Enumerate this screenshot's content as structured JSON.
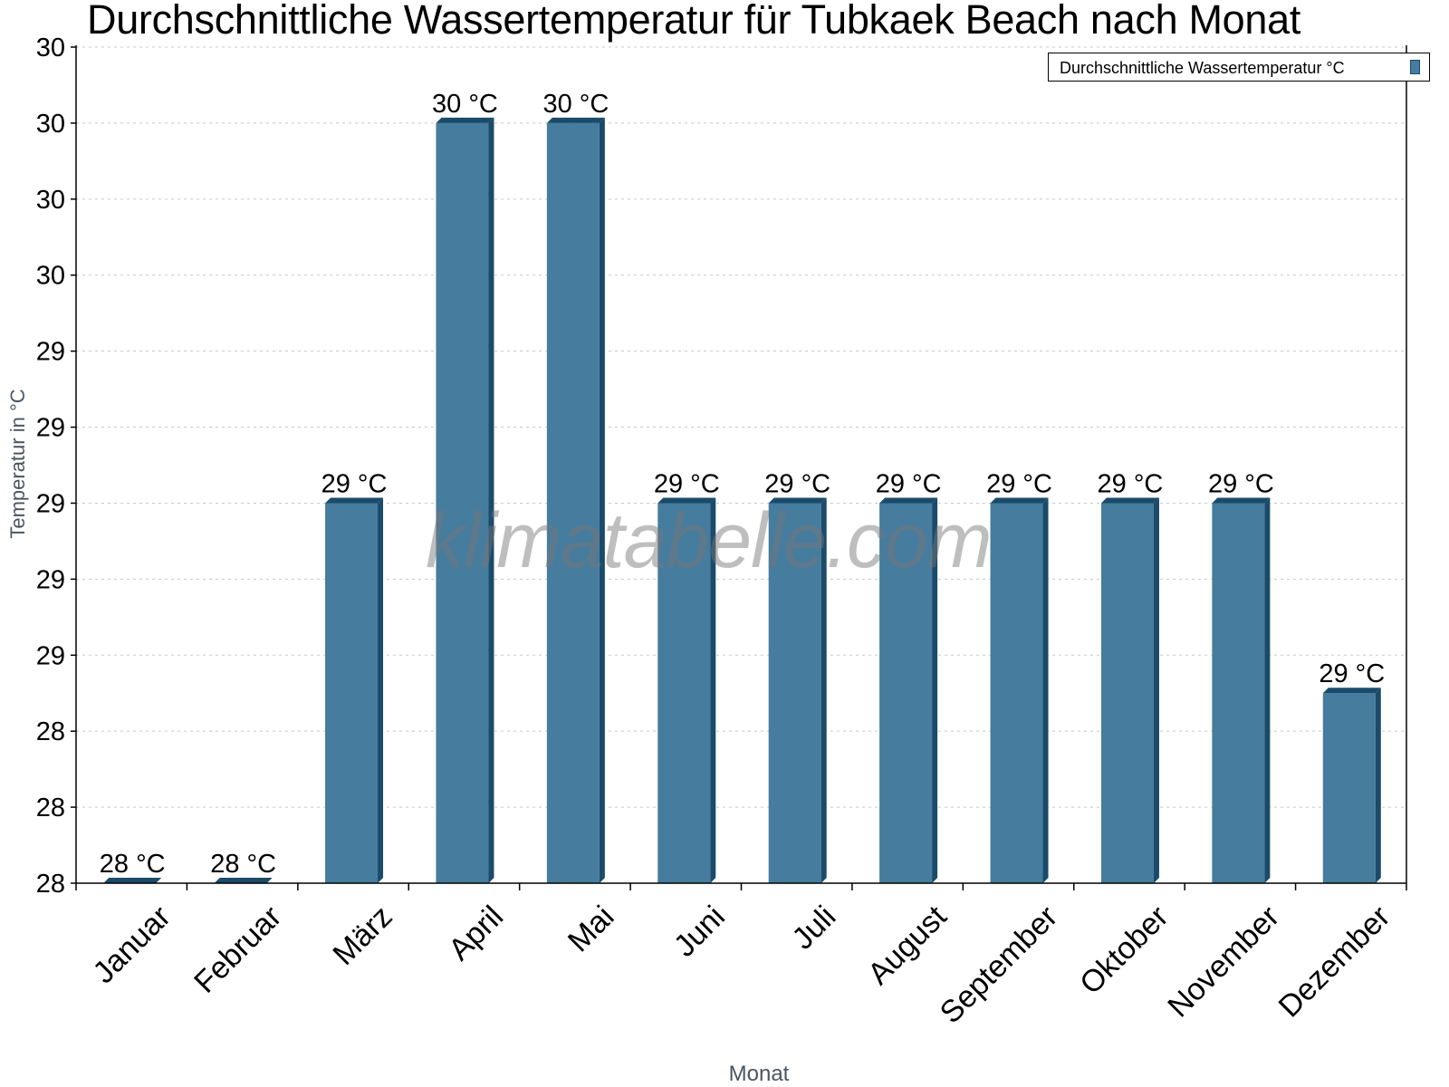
{
  "title": "Durchschnittliche Wassertemperatur für Tubkaek Beach nach Monat",
  "legend": {
    "label": "Durchschnittliche Wassertemperatur °C"
  },
  "watermark": "klimatabelle.com",
  "axes": {
    "ylabel": "Temperatur in °C",
    "xlabel": "Monat",
    "ytick_labels": [
      "28",
      "28",
      "28",
      "29",
      "29",
      "29",
      "29",
      "29",
      "30",
      "30",
      "30",
      "30"
    ]
  },
  "colors": {
    "bar_front": "#467c9e",
    "bar_side": "#1a4b6b",
    "grid": "#c8c8c8",
    "axis": "#000000"
  },
  "chart_data": {
    "type": "bar",
    "title": "Durchschnittliche Wassertemperatur für Tubkaek Beach nach Monat",
    "xlabel": "Monat",
    "ylabel": "Temperatur in °C",
    "categories": [
      "Januar",
      "Februar",
      "März",
      "April",
      "Mai",
      "Juni",
      "Juli",
      "August",
      "September",
      "Oktober",
      "November",
      "Dezember"
    ],
    "series": [
      {
        "name": "Durchschnittliche Wassertemperatur °C",
        "values": [
          28.0,
          28.0,
          29.0,
          30.0,
          30.0,
          29.0,
          29.0,
          29.0,
          29.0,
          29.0,
          29.0,
          28.5
        ],
        "data_labels": [
          "28 °C",
          "28 °C",
          "29 °C",
          "30 °C",
          "30 °C",
          "29 °C",
          "29 °C",
          "29 °C",
          "29 °C",
          "29 °C",
          "29 °C",
          "29 °C"
        ]
      }
    ],
    "ylim": [
      28.0,
      30.2
    ],
    "yticks": [
      28.0,
      28.2,
      28.4,
      28.6,
      28.8,
      29.0,
      29.2,
      29.4,
      29.6,
      29.8,
      30.0,
      30.2
    ],
    "ytick_labels": [
      "28",
      "28",
      "28",
      "29",
      "29",
      "29",
      "29",
      "29",
      "30",
      "30",
      "30",
      "30"
    ],
    "grid": "horizontal dotted",
    "legend_position": "top-right"
  }
}
